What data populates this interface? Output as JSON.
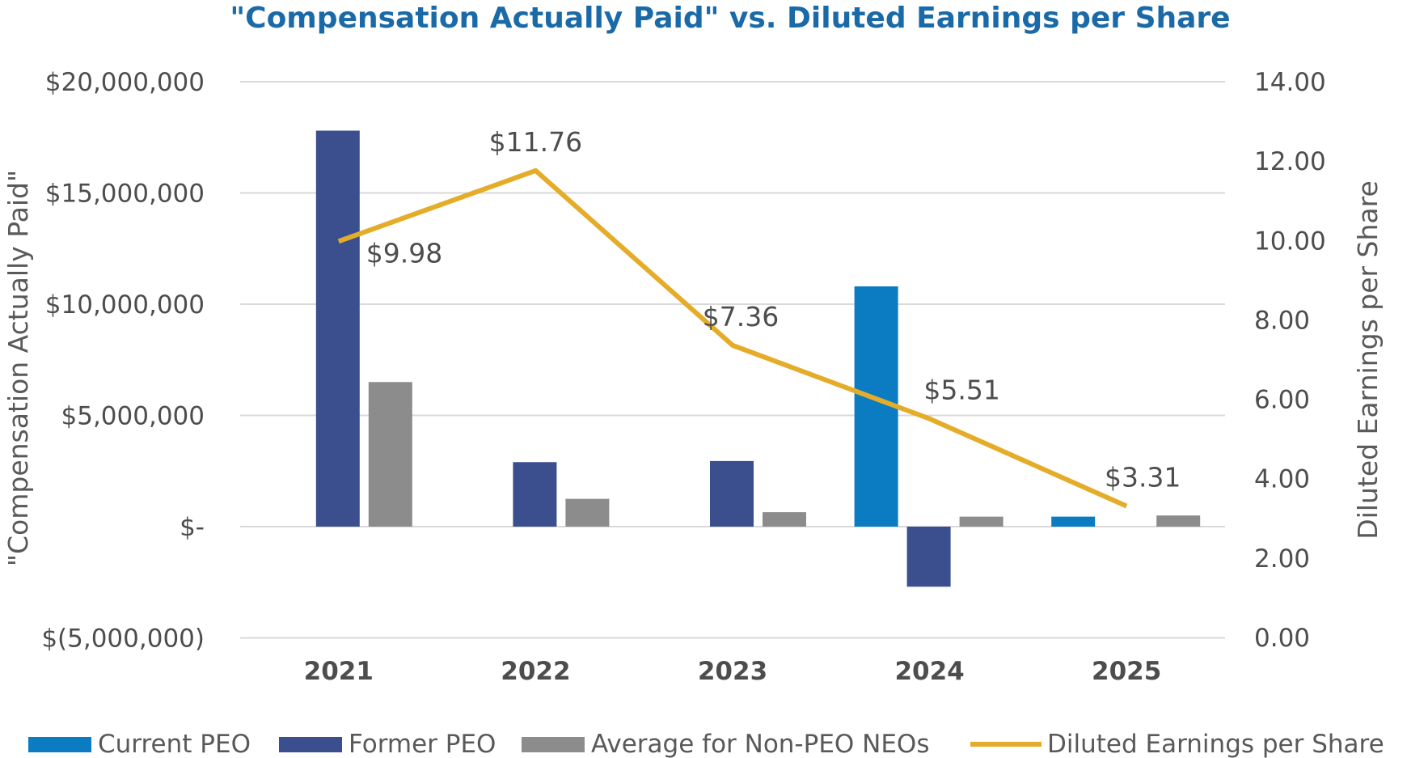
{
  "chart_data": {
    "type": "bar",
    "title": "\"Compensation Actually Paid\" vs. Diluted Earnings per Share",
    "categories": [
      "2021",
      "2022",
      "2023",
      "2024",
      "2025"
    ],
    "ylabel": "\"Compensation Actually Paid\"",
    "y2label": "Diluted Earnings per Share",
    "ylim": [
      -5000000,
      20000000
    ],
    "y2lim": [
      0,
      14
    ],
    "yticks": [
      {
        "value": 20000000,
        "label": "$20,000,000"
      },
      {
        "value": 15000000,
        "label": "$15,000,000"
      },
      {
        "value": 10000000,
        "label": "$10,000,000"
      },
      {
        "value": 5000000,
        "label": "$5,000,000"
      },
      {
        "value": 0,
        "label": "$-"
      },
      {
        "value": -5000000,
        "label": "$(5,000,000)"
      }
    ],
    "y2ticks": [
      {
        "value": 14,
        "label": "14.00"
      },
      {
        "value": 12,
        "label": "12.00"
      },
      {
        "value": 10,
        "label": "10.00"
      },
      {
        "value": 8,
        "label": "8.00"
      },
      {
        "value": 6,
        "label": "6.00"
      },
      {
        "value": 4,
        "label": "4.00"
      },
      {
        "value": 2,
        "label": "2.00"
      },
      {
        "value": 0,
        "label": "0.00"
      }
    ],
    "series": [
      {
        "name": "Current PEO",
        "type": "bar",
        "color": "#0b7cc1",
        "values": [
          null,
          null,
          null,
          10800000,
          450000
        ]
      },
      {
        "name": "Former PEO",
        "type": "bar",
        "color": "#3b4f8f",
        "values": [
          17800000,
          2900000,
          2950000,
          -2700000,
          null
        ]
      },
      {
        "name": "Average for Non-PEO NEOs",
        "type": "bar",
        "color": "#8c8c8c",
        "values": [
          6500000,
          1250000,
          650000,
          450000,
          500000
        ]
      },
      {
        "name": "Diluted Earnings per Share",
        "type": "line",
        "axis": "right",
        "color": "#e5ac2a",
        "values": [
          9.98,
          11.76,
          7.36,
          5.51,
          3.31
        ],
        "labels": [
          "$9.98",
          "$11.76",
          "$7.36",
          "$5.51",
          "$3.31"
        ]
      }
    ]
  }
}
